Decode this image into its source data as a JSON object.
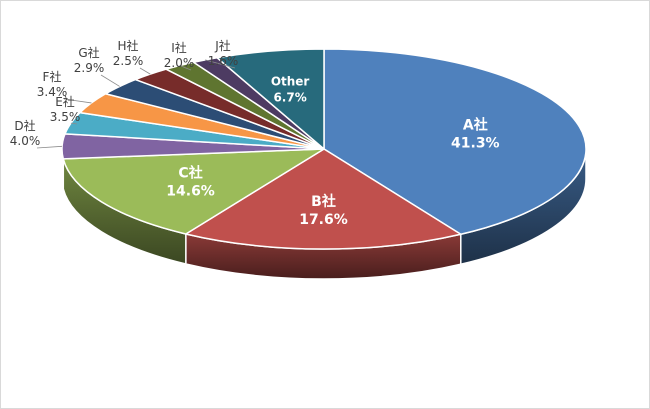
{
  "chart_data": {
    "type": "pie",
    "style": "3d",
    "title": "",
    "legend": "none",
    "slices": [
      {
        "name": "A社",
        "value": 41.3,
        "label": "41.3%",
        "color": "#4f81bd",
        "label_pos": "inside"
      },
      {
        "name": "B社",
        "value": 17.6,
        "label": "17.6%",
        "color": "#c0504d",
        "label_pos": "inside"
      },
      {
        "name": "C社",
        "value": 14.6,
        "label": "14.6%",
        "color": "#9bbb59",
        "label_pos": "inside"
      },
      {
        "name": "D社",
        "value": 4.0,
        "label": "4.0%",
        "color": "#8064a2",
        "label_pos": "outside"
      },
      {
        "name": "E社",
        "value": 3.5,
        "label": "3.5%",
        "color": "#4bacc6",
        "label_pos": "outside"
      },
      {
        "name": "F社",
        "value": 3.4,
        "label": "3.4%",
        "color": "#f79646",
        "label_pos": "outside"
      },
      {
        "name": "G社",
        "value": 2.9,
        "label": "2.9%",
        "color": "#2c4d75",
        "label_pos": "outside"
      },
      {
        "name": "H社",
        "value": 2.5,
        "label": "2.5%",
        "color": "#772c2a",
        "label_pos": "outside"
      },
      {
        "name": "I社",
        "value": 2.0,
        "label": "2.0%",
        "color": "#5f7530",
        "label_pos": "outside"
      },
      {
        "name": "J社",
        "value": 1.6,
        "label": "1.6%",
        "color": "#4d3b62",
        "label_pos": "outside"
      },
      {
        "name": "Other",
        "value": 6.7,
        "label": "6.7%",
        "color": "#276a7c",
        "label_pos": "inside"
      }
    ]
  }
}
